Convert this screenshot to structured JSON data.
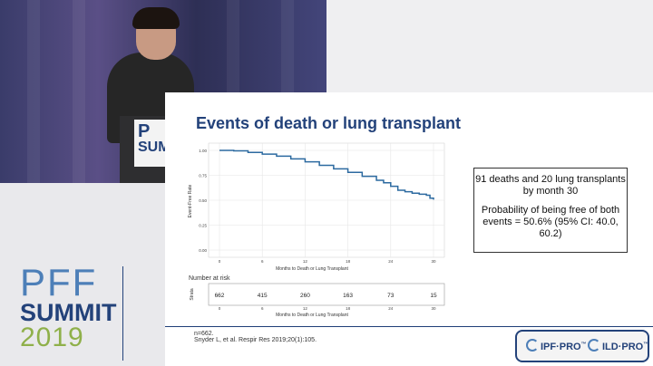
{
  "slide": {
    "title": "Events of death or lung transplant",
    "info_line1": "91 deaths and 20 lung transplants by month 30",
    "info_line2": "Probability of being free of both events = 50.6% (95% CI: 40.0, 60.2)",
    "footnote_n": "n=662.",
    "footnote_ref": "Snyder L, et al. Respir Res 2019;20(1):105."
  },
  "podium": {
    "sign_line1": "P",
    "sign_line2": "SUM"
  },
  "logo": {
    "line1": "PFF",
    "line2": "SUMMIT",
    "line3": "2019"
  },
  "badges": {
    "ipf": "IPF·PRO",
    "ild": "ILD·PRO",
    "tm": "™"
  },
  "chart_data": [
    {
      "type": "line",
      "title": "",
      "xlabel": "Months to Death or Lung Transplant",
      "ylabel": "Event-Free Rate",
      "xlim": [
        0,
        30
      ],
      "ylim": [
        0,
        1
      ],
      "x_ticks": [
        "0",
        "6",
        "12",
        "18",
        "24",
        "30"
      ],
      "y_ticks": [
        "0.00",
        "0.25",
        "0.50",
        "0.75",
        "1.00"
      ],
      "grid": true,
      "series": [
        {
          "x": [
            0,
            2,
            4,
            6,
            8,
            10,
            12,
            14,
            16,
            18,
            20,
            22,
            23,
            24,
            25,
            26,
            27,
            28,
            29,
            29.5,
            30
          ],
          "values": [
            1.0,
            0.995,
            0.98,
            0.962,
            0.942,
            0.915,
            0.885,
            0.85,
            0.815,
            0.78,
            0.74,
            0.7,
            0.675,
            0.64,
            0.6,
            0.585,
            0.57,
            0.56,
            0.55,
            0.52,
            0.506
          ]
        }
      ]
    },
    {
      "type": "table",
      "title": "Number at risk",
      "row_label": "Strata",
      "xlabel": "Months to Death or Lung Transplant",
      "x_ticks": [
        "0",
        "6",
        "12",
        "18",
        "24",
        "30"
      ],
      "x": [
        0,
        6,
        12,
        18,
        24,
        30
      ],
      "values": [
        "662",
        "415",
        "260",
        "163",
        "73",
        "15"
      ]
    }
  ]
}
